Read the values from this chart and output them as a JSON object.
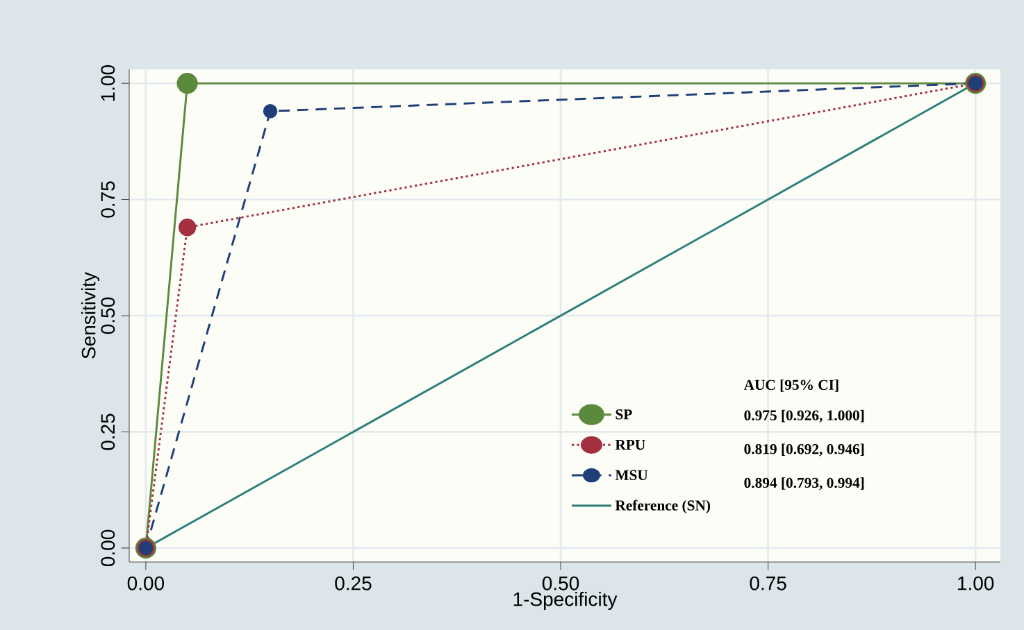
{
  "chart_data": {
    "type": "line",
    "xlabel": "1-Specificity",
    "ylabel": "Sensitivity",
    "xlim": [
      -0.02,
      1.03
    ],
    "ylim": [
      -0.03,
      1.03
    ],
    "xticks": [
      {
        "value": 0,
        "label": "0.00"
      },
      {
        "value": 0.25,
        "label": "0.25"
      },
      {
        "value": 0.5,
        "label": "0.50"
      },
      {
        "value": 0.75,
        "label": "0.75"
      },
      {
        "value": 1,
        "label": "1.00"
      }
    ],
    "yticks": [
      {
        "value": 0,
        "label": "0.00"
      },
      {
        "value": 0.25,
        "label": "0.25"
      },
      {
        "value": 0.5,
        "label": "0.50"
      },
      {
        "value": 0.75,
        "label": "0.75"
      },
      {
        "value": 1,
        "label": "1.00"
      }
    ],
    "grid": true,
    "legend": "bottom right",
    "marker": "circle",
    "series": [
      {
        "name": "SP",
        "color": "#5b8a3c",
        "x": [
          0,
          0.05,
          1
        ],
        "values": [
          0,
          1,
          1
        ],
        "line_style": "solid"
      },
      {
        "name": "RPU",
        "color": "#a3303f",
        "x": [
          0,
          0.05,
          1
        ],
        "values": [
          0,
          0.69,
          1
        ],
        "line_style": "dotted"
      },
      {
        "name": "MSU",
        "color": "#1f3f78",
        "x": [
          0,
          0.15,
          1
        ],
        "values": [
          0,
          0.94,
          1
        ],
        "line_style": "dashed"
      },
      {
        "name": "Reference (SN)",
        "color": "#2b7f78",
        "x": [
          0,
          1
        ],
        "values": [
          0,
          1
        ],
        "line_style": "solid",
        "marker": "none"
      }
    ],
    "annotations": [
      "AUC [95% CI]",
      "0.975 [0.926, 1.000]",
      "0.819 [0.692, 0.946]",
      "0.894 [0.793, 0.994]"
    ]
  }
}
